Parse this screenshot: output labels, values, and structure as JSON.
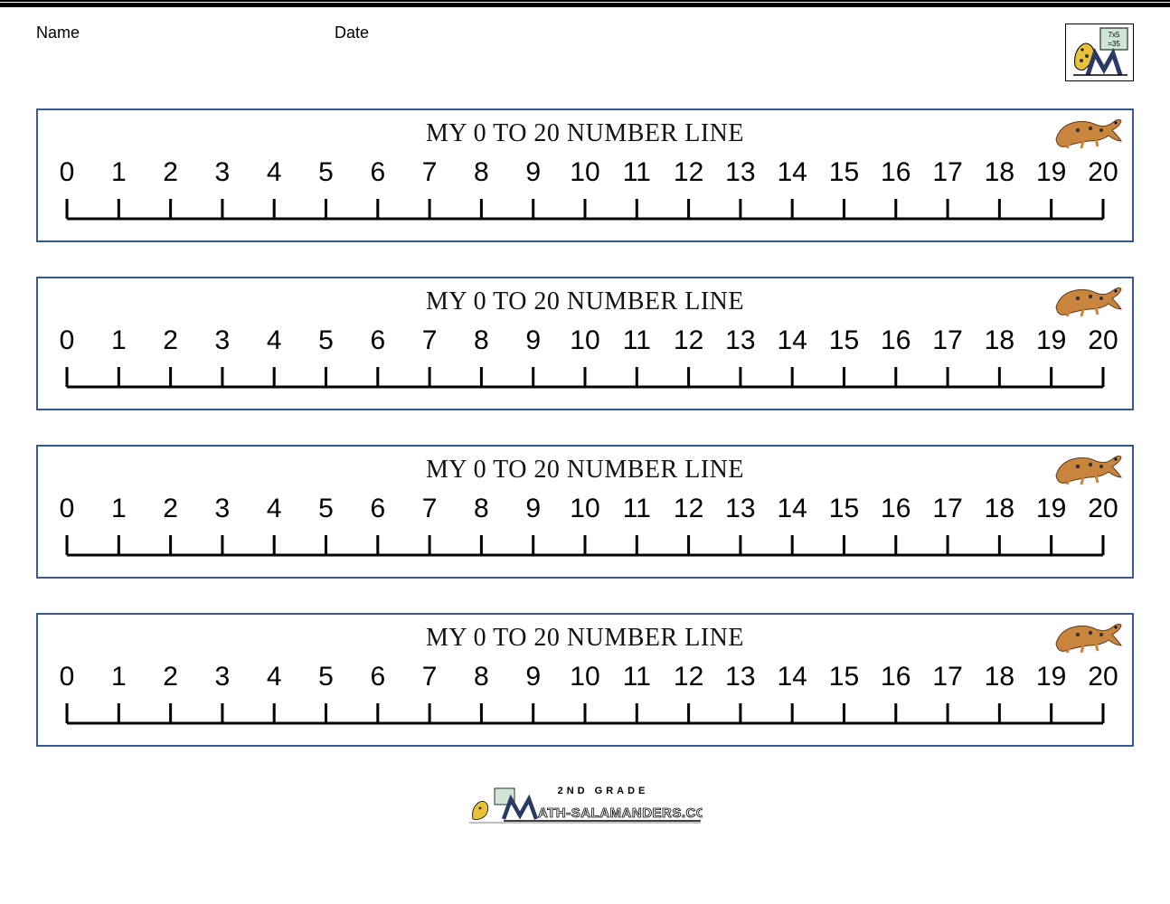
{
  "header": {
    "name_label": "Name",
    "date_label": "Date"
  },
  "card": {
    "title": "MY 0 TO 20 NUMBER LINE",
    "border_color": "#3a5a8c",
    "numbers": [
      "0",
      "1",
      "2",
      "3",
      "4",
      "5",
      "6",
      "7",
      "8",
      "9",
      "10",
      "11",
      "12",
      "13",
      "14",
      "15",
      "16",
      "17",
      "18",
      "19",
      "20"
    ],
    "line_color": "#000000",
    "tick_height": 22,
    "number_fontsize": 30,
    "title_fontsize": 28,
    "count": 4
  },
  "salamander": {
    "body_color": "#c9843d",
    "spot_color": "#333333"
  },
  "logo": {
    "salamander_color": "#e8c23a",
    "board_color": "#cfe6d6",
    "board_text1": "7x5",
    "board_text2": "=35",
    "m_color": "#2a3a66"
  },
  "footer": {
    "top_text": "2ND GRADE",
    "url_text": "ATH-SALAMANDERS.COM",
    "salamander_color": "#e8c23a",
    "board_color": "#cfe6d6",
    "m_color": "#2a3a66"
  }
}
